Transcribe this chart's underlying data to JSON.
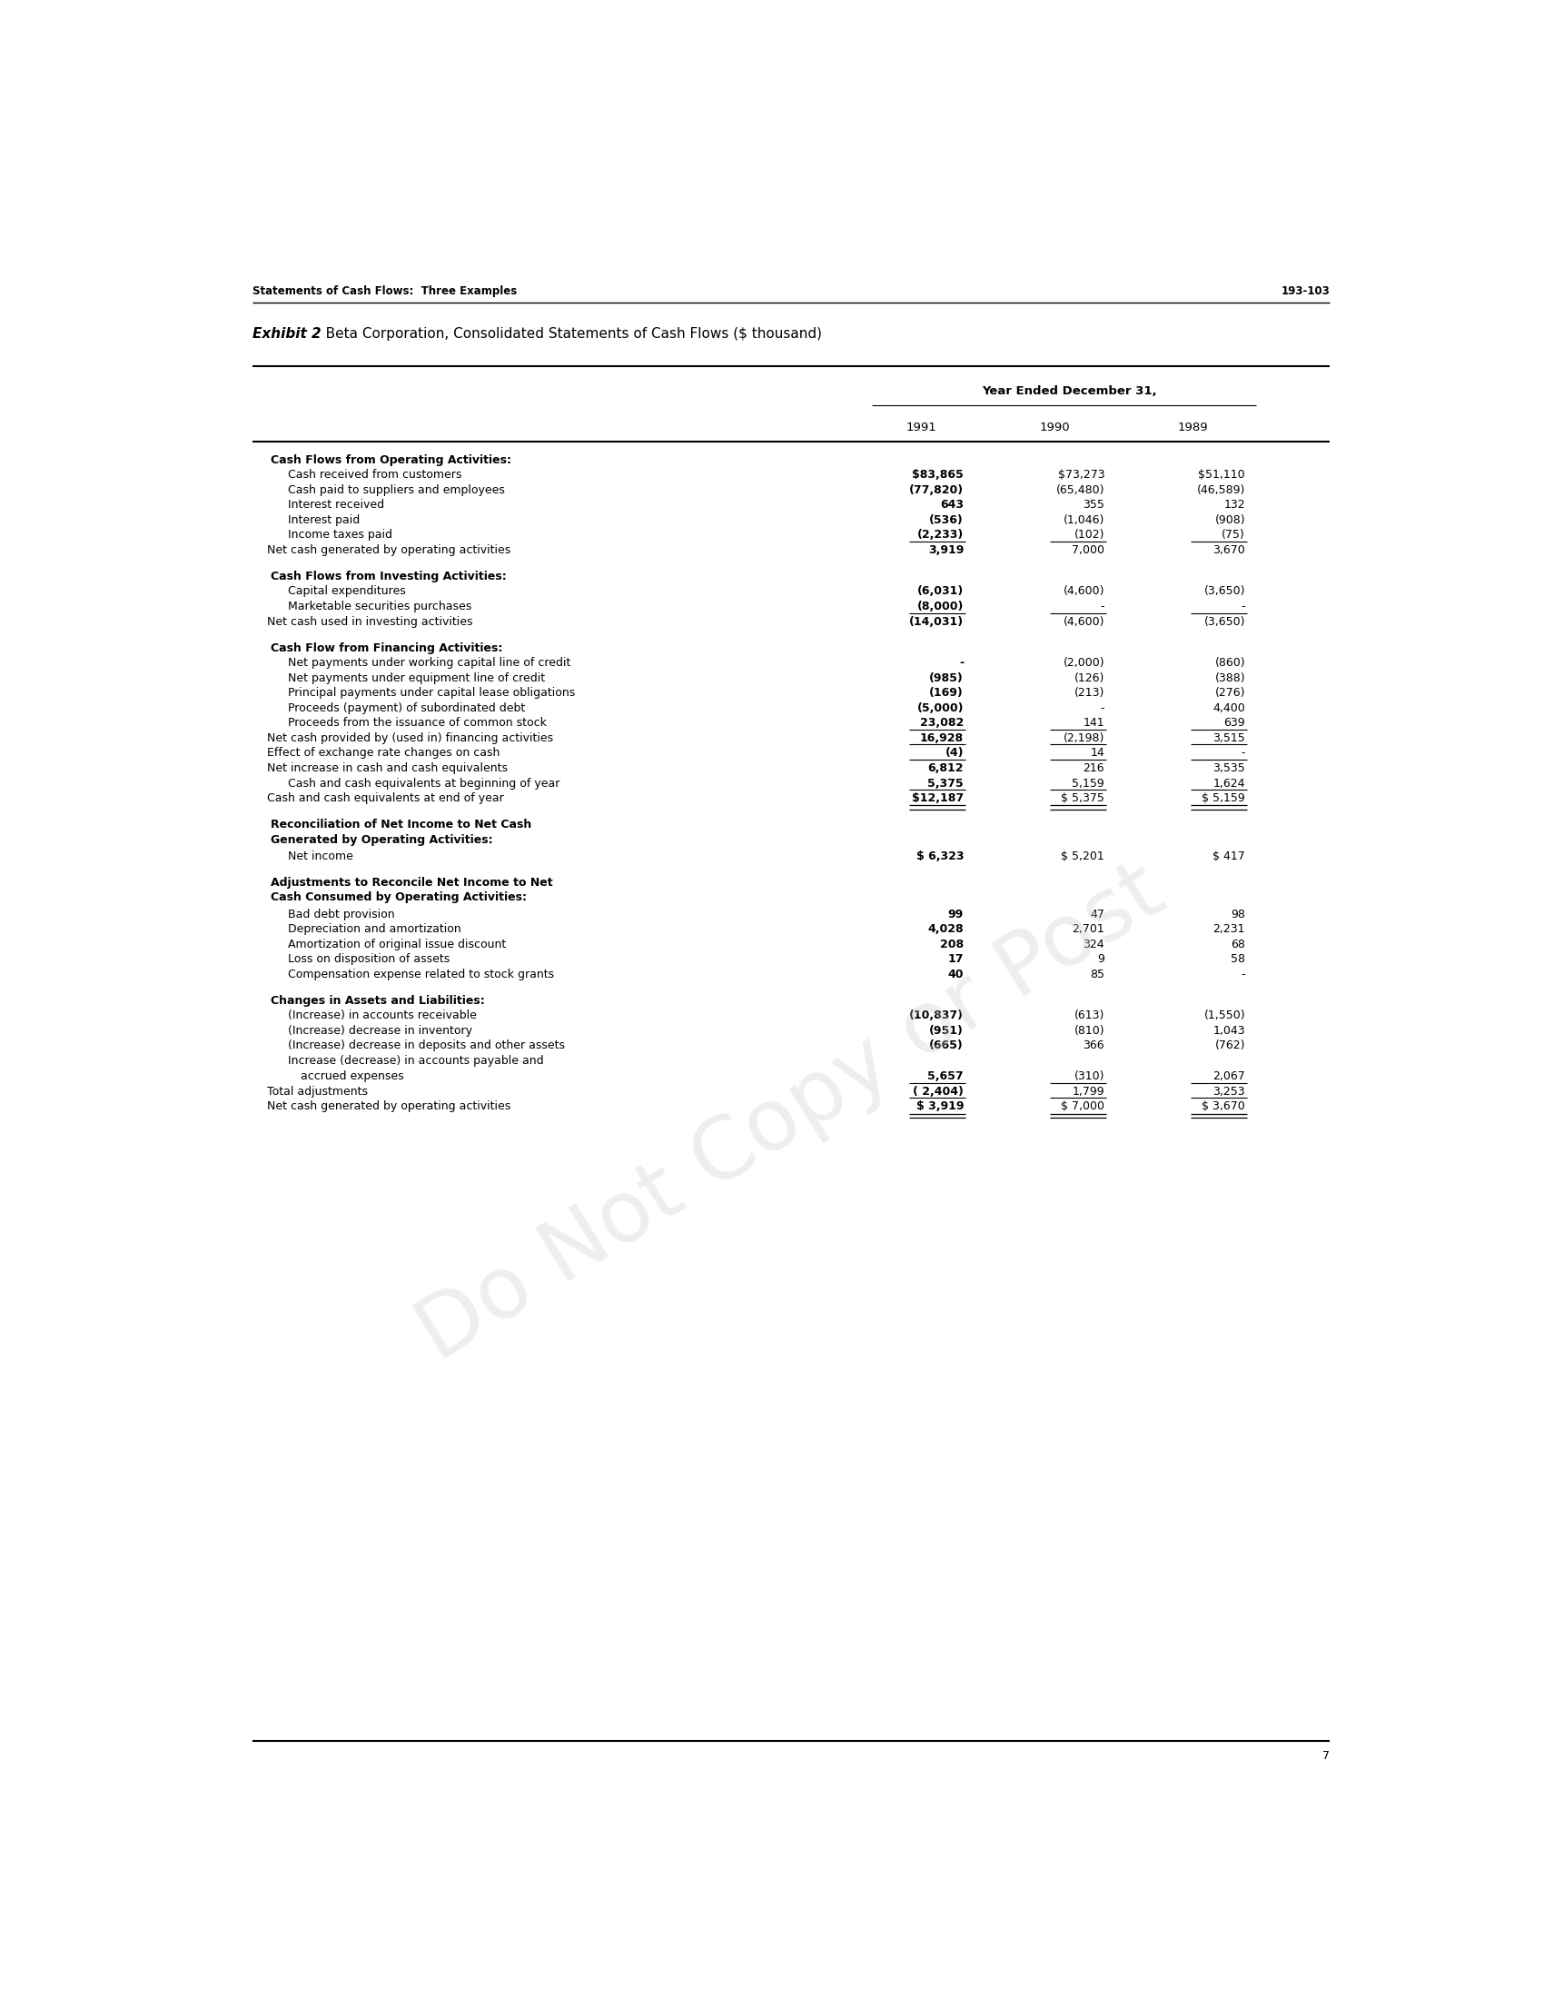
{
  "header_left": "Statements of Cash Flows:  Three Examples",
  "header_right": "193-103",
  "exhibit_label": "Exhibit 2",
  "exhibit_title": "   Beta Corporation, Consolidated Statements of Cash Flows ($ thousand)",
  "col_header": "Year Ended December 31,",
  "years": [
    "1991",
    "1990",
    "1989"
  ],
  "page_number": "7",
  "rows": [
    {
      "type": "section",
      "label": "Cash Flows from Operating Activities:",
      "v1991": "",
      "v1990": "",
      "v1989": ""
    },
    {
      "type": "detail",
      "label": "Cash received from customers",
      "v1991": "$83,865",
      "v1990": "$73,273",
      "v1989": "$51,110",
      "bold": true
    },
    {
      "type": "detail",
      "label": "Cash paid to suppliers and employees",
      "v1991": "(77,820)",
      "v1990": "(65,480)",
      "v1989": "(46,589)",
      "bold": true
    },
    {
      "type": "detail",
      "label": "Interest received",
      "v1991": "643",
      "v1990": "355",
      "v1989": "132",
      "bold": true
    },
    {
      "type": "detail",
      "label": "Interest paid",
      "v1991": "(536)",
      "v1990": "(1,046)",
      "v1989": "(908)",
      "bold": true
    },
    {
      "type": "detail",
      "label": "Income taxes paid",
      "v1991": "(2,233)",
      "v1990": "(102)",
      "v1989": "(75)",
      "bold": true
    },
    {
      "type": "subtotal_single",
      "label": "Net cash generated by operating activities",
      "v1991": "3,919",
      "v1990": "7,000",
      "v1989": "3,670",
      "bold": true
    },
    {
      "type": "blank_large",
      "label": "",
      "v1991": "",
      "v1990": "",
      "v1989": ""
    },
    {
      "type": "section",
      "label": "Cash Flows from Investing Activities:",
      "v1991": "",
      "v1990": "",
      "v1989": ""
    },
    {
      "type": "detail",
      "label": "Capital expenditures",
      "v1991": "(6,031)",
      "v1990": "(4,600)",
      "v1989": "(3,650)",
      "bold": true
    },
    {
      "type": "detail",
      "label": "Marketable securities purchases",
      "v1991": "(8,000)",
      "v1990": "-",
      "v1989": "-",
      "bold": true
    },
    {
      "type": "subtotal_single",
      "label": "Net cash used in investing activities",
      "v1991": "(14,031)",
      "v1990": "(4,600)",
      "v1989": "(3,650)",
      "bold": true
    },
    {
      "type": "blank_large",
      "label": "",
      "v1991": "",
      "v1990": "",
      "v1989": ""
    },
    {
      "type": "section",
      "label": "Cash Flow from Financing Activities:",
      "v1991": "",
      "v1990": "",
      "v1989": ""
    },
    {
      "type": "detail",
      "label": "Net payments under working capital line of credit",
      "v1991": "-",
      "v1990": "(2,000)",
      "v1989": "(860)",
      "bold": true
    },
    {
      "type": "detail",
      "label": "Net payments under equipment line of credit",
      "v1991": "(985)",
      "v1990": "(126)",
      "v1989": "(388)",
      "bold": true
    },
    {
      "type": "detail",
      "label": "Principal payments under capital lease obligations",
      "v1991": "(169)",
      "v1990": "(213)",
      "v1989": "(276)",
      "bold": true
    },
    {
      "type": "detail",
      "label": "Proceeds (payment) of subordinated debt",
      "v1991": "(5,000)",
      "v1990": "-",
      "v1989": "4,400",
      "bold": true
    },
    {
      "type": "detail",
      "label": "Proceeds from the issuance of common stock",
      "v1991": "23,082",
      "v1990": "141",
      "v1989": "639",
      "bold": true
    },
    {
      "type": "subtotal_single",
      "label": "Net cash provided by (used in) financing activities",
      "v1991": "16,928",
      "v1990": "(2,198)",
      "v1989": "3,515",
      "bold": true
    },
    {
      "type": "subtotal_single",
      "label": "Effect of exchange rate changes on cash",
      "v1991": "(4)",
      "v1990": "14",
      "v1989": "-",
      "bold": true
    },
    {
      "type": "subtotal_single",
      "label": "Net increase in cash and cash equivalents",
      "v1991": "6,812",
      "v1990": "216",
      "v1989": "3,535",
      "bold": true
    },
    {
      "type": "detail",
      "label": "Cash and cash equivalents at beginning of year",
      "v1991": "5,375",
      "v1990": "5,159",
      "v1989": "1,624",
      "bold": true
    },
    {
      "type": "subtotal_double",
      "label": "Cash and cash equivalents at end of year",
      "v1991": "$12,187",
      "v1990": "$ 5,375",
      "v1989": "$ 5,159",
      "bold": true
    },
    {
      "type": "blank_large",
      "label": "",
      "v1991": "",
      "v1990": "",
      "v1989": ""
    },
    {
      "type": "section2",
      "label": "Reconciliation of Net Income to Net Cash\nGenerated by Operating Activities:",
      "v1991": "",
      "v1990": "",
      "v1989": ""
    },
    {
      "type": "detail",
      "label": "Net income",
      "v1991": "$ 6,323",
      "v1990": "$ 5,201",
      "v1989": "$ 417",
      "bold": true
    },
    {
      "type": "blank_large",
      "label": "",
      "v1991": "",
      "v1990": "",
      "v1989": ""
    },
    {
      "type": "section2",
      "label": "Adjustments to Reconcile Net Income to Net\nCash Consumed by Operating Activities:",
      "v1991": "",
      "v1990": "",
      "v1989": ""
    },
    {
      "type": "detail",
      "label": "Bad debt provision",
      "v1991": "99",
      "v1990": "47",
      "v1989": "98",
      "bold": true
    },
    {
      "type": "detail",
      "label": "Depreciation and amortization",
      "v1991": "4,028",
      "v1990": "2,701",
      "v1989": "2,231",
      "bold": true
    },
    {
      "type": "detail",
      "label": "Amortization of original issue discount",
      "v1991": "208",
      "v1990": "324",
      "v1989": "68",
      "bold": true
    },
    {
      "type": "detail",
      "label": "Loss on disposition of assets",
      "v1991": "17",
      "v1990": "9",
      "v1989": "58",
      "bold": true
    },
    {
      "type": "detail",
      "label": "Compensation expense related to stock grants",
      "v1991": "40",
      "v1990": "85",
      "v1989": "-",
      "bold": true
    },
    {
      "type": "blank_large",
      "label": "",
      "v1991": "",
      "v1990": "",
      "v1989": ""
    },
    {
      "type": "section",
      "label": "Changes in Assets and Liabilities:",
      "v1991": "",
      "v1990": "",
      "v1989": ""
    },
    {
      "type": "detail",
      "label": "(Increase) in accounts receivable",
      "v1991": "(10,837)",
      "v1990": "(613)",
      "v1989": "(1,550)",
      "bold": true
    },
    {
      "type": "detail",
      "label": "(Increase) decrease in inventory",
      "v1991": "(951)",
      "v1990": "(810)",
      "v1989": "1,043",
      "bold": true
    },
    {
      "type": "detail",
      "label": "(Increase) decrease in deposits and other assets",
      "v1991": "(665)",
      "v1990": "366",
      "v1989": "(762)",
      "bold": true
    },
    {
      "type": "detail2",
      "label": "Increase (decrease) in accounts payable and\naccrued expenses",
      "v1991": "5,657",
      "v1990": "(310)",
      "v1989": "2,067",
      "bold": true
    },
    {
      "type": "subtotal_single",
      "label": "Total adjustments",
      "v1991": "( 2,404)",
      "v1990": "1,799",
      "v1989": "3,253",
      "bold": true
    },
    {
      "type": "subtotal_double",
      "label": "Net cash generated by operating activities",
      "v1991": "$ 3,919",
      "v1990": "$ 7,000",
      "v1989": "$ 3,670",
      "bold": true
    }
  ]
}
